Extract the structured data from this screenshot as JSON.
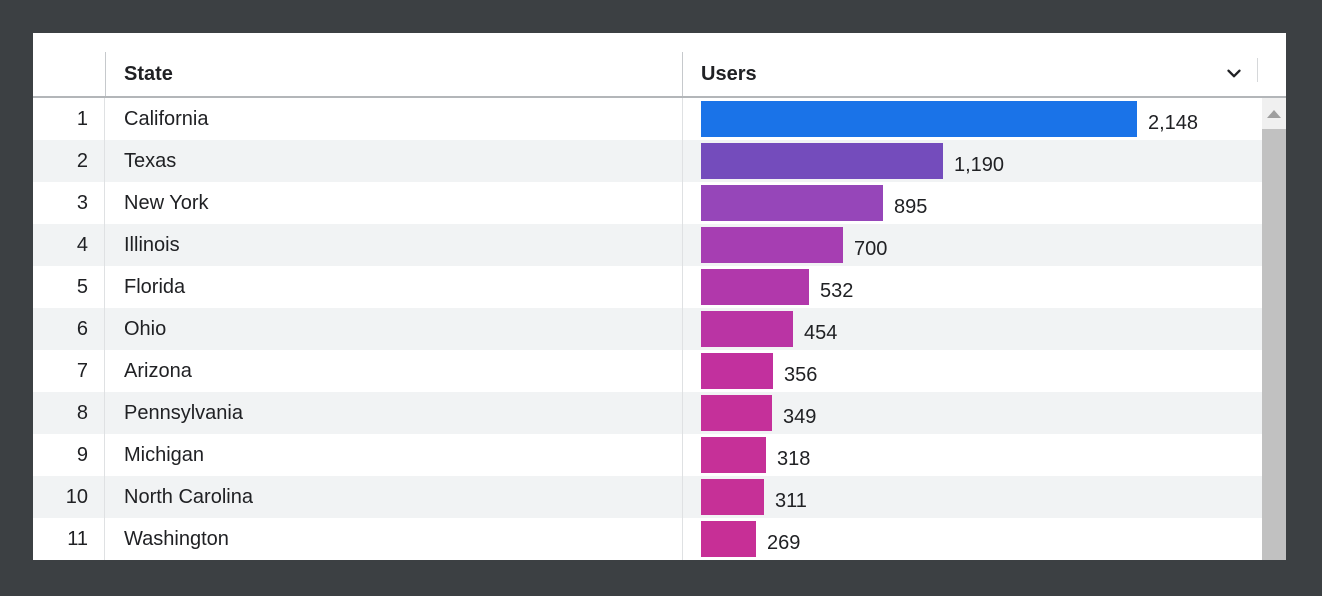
{
  "table": {
    "columns": {
      "state": "State",
      "users": "Users"
    },
    "rows": [
      {
        "rank": "1",
        "state": "California",
        "users": "2,148",
        "value": 2148,
        "bar_color": "#1a73e8"
      },
      {
        "rank": "2",
        "state": "Texas",
        "users": "1,190",
        "value": 1190,
        "bar_color": "#744cbc"
      },
      {
        "rank": "3",
        "state": "New York",
        "users": "895",
        "value": 895,
        "bar_color": "#9646b9"
      },
      {
        "rank": "4",
        "state": "Illinois",
        "users": "700",
        "value": 700,
        "bar_color": "#a63eb2"
      },
      {
        "rank": "5",
        "state": "Florida",
        "users": "532",
        "value": 532,
        "bar_color": "#b138ab"
      },
      {
        "rank": "6",
        "state": "Ohio",
        "users": "454",
        "value": 454,
        "bar_color": "#ba34a4"
      },
      {
        "rank": "7",
        "state": "Arizona",
        "users": "356",
        "value": 356,
        "bar_color": "#c2309e"
      },
      {
        "rank": "8",
        "state": "Pennsylvania",
        "users": "349",
        "value": 349,
        "bar_color": "#c5309a"
      },
      {
        "rank": "9",
        "state": "Michigan",
        "users": "318",
        "value": 318,
        "bar_color": "#c63098"
      },
      {
        "rank": "10",
        "state": "North Carolina",
        "users": "311",
        "value": 311,
        "bar_color": "#c63097"
      },
      {
        "rank": "11",
        "state": "Washington",
        "users": "269",
        "value": 269,
        "bar_color": "#c72f96"
      }
    ]
  },
  "chart_data": {
    "type": "bar",
    "orientation": "horizontal",
    "categories": [
      "California",
      "Texas",
      "New York",
      "Illinois",
      "Florida",
      "Ohio",
      "Arizona",
      "Pennsylvania",
      "Michigan",
      "North Carolina",
      "Washington"
    ],
    "values": [
      2148,
      1190,
      895,
      700,
      532,
      454,
      356,
      349,
      318,
      311,
      269
    ],
    "value_labels": [
      "2,148",
      "1,190",
      "895",
      "700",
      "532",
      "454",
      "356",
      "349",
      "318",
      "311",
      "269"
    ],
    "title": "",
    "xlabel": "Users",
    "ylabel": "State",
    "xlim": [
      0,
      2148
    ],
    "grid": false,
    "legend": false
  },
  "icons": {
    "header_sort": "chevron-down-icon",
    "scroll_up": "triangle-up-icon"
  },
  "colors": {
    "page_background": "#3c4043",
    "card_background": "#ffffff",
    "row_alt_background": "#f1f3f4",
    "text": "#202124",
    "divider": "#dfe1e3",
    "header_border": "#b3b6b9",
    "scrollbar_track": "#f1f1f1",
    "scrollbar_thumb": "#c1c1c1",
    "scrollbar_arrow": "#9e9e9e",
    "top_bar_color": "#1a73e8"
  }
}
